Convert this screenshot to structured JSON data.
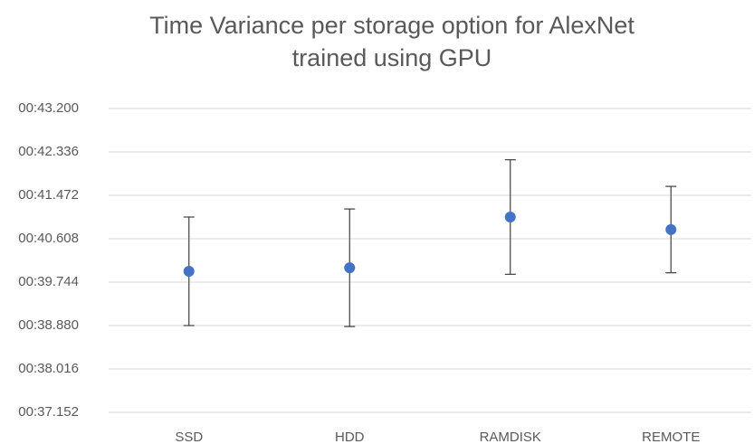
{
  "chart_data": {
    "type": "errorbar",
    "title": "Time Variance per storage option for AlexNet trained using GPU",
    "categories": [
      "SSD",
      "HDD",
      "RAMDISK",
      "REMOTE"
    ],
    "values": [
      39.96,
      40.03,
      41.04,
      40.79
    ],
    "errors": [
      1.08,
      1.17,
      1.14,
      0.86
    ],
    "color": "#4472c4",
    "ylim": [
      37.152,
      43.2
    ],
    "yticks": [
      {
        "value": 37.152,
        "label": "00:37.152"
      },
      {
        "value": 38.016,
        "label": "00:38.016"
      },
      {
        "value": 38.88,
        "label": "00:38.880"
      },
      {
        "value": 39.744,
        "label": "00:39.744"
      },
      {
        "value": 40.608,
        "label": "00:40.608"
      },
      {
        "value": 41.472,
        "label": "00:41.472"
      },
      {
        "value": 42.336,
        "label": "00:42.336"
      },
      {
        "value": 43.2,
        "label": "00:43.200"
      }
    ],
    "grid": true
  }
}
